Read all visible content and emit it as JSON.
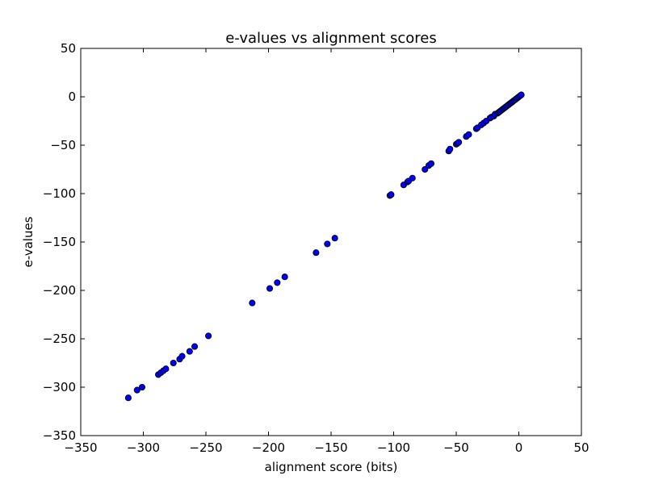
{
  "chart_data": {
    "type": "scatter",
    "title": "e-values vs alignment scores",
    "xlabel": "alignment score (bits)",
    "ylabel": "e-values",
    "xlim": [
      -350,
      50
    ],
    "ylim": [
      -350,
      50
    ],
    "xticks": [
      -350,
      -300,
      -250,
      -200,
      -150,
      -100,
      -50,
      0,
      50
    ],
    "yticks": [
      -350,
      -300,
      -250,
      -200,
      -150,
      -100,
      -50,
      0,
      50
    ],
    "xtick_labels": [
      "−350",
      "−300",
      "−250",
      "−200",
      "−150",
      "−100",
      "−50",
      "0",
      "50"
    ],
    "ytick_labels": [
      "−350",
      "−300",
      "−250",
      "−200",
      "−150",
      "−100",
      "−50",
      "0",
      "50"
    ],
    "grid": false,
    "marker_color": "#0000ff",
    "marker_edge_color": "#000000",
    "series": [
      {
        "points": [
          [
            -312,
            -311
          ],
          [
            -305,
            -303
          ],
          [
            -301,
            -300
          ],
          [
            -288,
            -287
          ],
          [
            -286,
            -285
          ],
          [
            -284,
            -283
          ],
          [
            -282,
            -281
          ],
          [
            -276,
            -275
          ],
          [
            -271,
            -271
          ],
          [
            -269,
            -268
          ],
          [
            -263,
            -263
          ],
          [
            -259,
            -258
          ],
          [
            -248,
            -247
          ],
          [
            -213,
            -213
          ],
          [
            -199,
            -198
          ],
          [
            -193,
            -192
          ],
          [
            -187,
            -186
          ],
          [
            -162,
            -161
          ],
          [
            -153,
            -152
          ],
          [
            -147,
            -146
          ],
          [
            -103,
            -102
          ],
          [
            -102,
            -101
          ],
          [
            -92,
            -91
          ],
          [
            -89,
            -88
          ],
          [
            -88,
            -87
          ],
          [
            -85,
            -84
          ],
          [
            -75,
            -75
          ],
          [
            -72,
            -71
          ],
          [
            -70,
            -69
          ],
          [
            -56,
            -56
          ],
          [
            -55,
            -54
          ],
          [
            -50,
            -49
          ],
          [
            -49,
            -48
          ],
          [
            -48,
            -47
          ],
          [
            -42,
            -41
          ],
          [
            -40,
            -39
          ],
          [
            -34,
            -33
          ],
          [
            -33,
            -32
          ],
          [
            -30,
            -29
          ],
          [
            -28,
            -27
          ],
          [
            -26,
            -25
          ],
          [
            -23,
            -22
          ],
          [
            -22,
            -21
          ],
          [
            -20,
            -20
          ],
          [
            -19,
            -18
          ],
          [
            -17,
            -17
          ],
          [
            -16,
            -16
          ],
          [
            -15,
            -15
          ],
          [
            -14,
            -14
          ],
          [
            -13,
            -13
          ],
          [
            -12,
            -12
          ],
          [
            -11,
            -11
          ],
          [
            -10,
            -10
          ],
          [
            -9,
            -9
          ],
          [
            -8,
            -8
          ],
          [
            -7,
            -7
          ],
          [
            -6,
            -6
          ],
          [
            -5,
            -5
          ],
          [
            -4,
            -4
          ],
          [
            -3,
            -3
          ],
          [
            -2,
            -2
          ],
          [
            -1,
            -1
          ],
          [
            0,
            0
          ],
          [
            1,
            1
          ],
          [
            2,
            2
          ]
        ]
      }
    ]
  }
}
